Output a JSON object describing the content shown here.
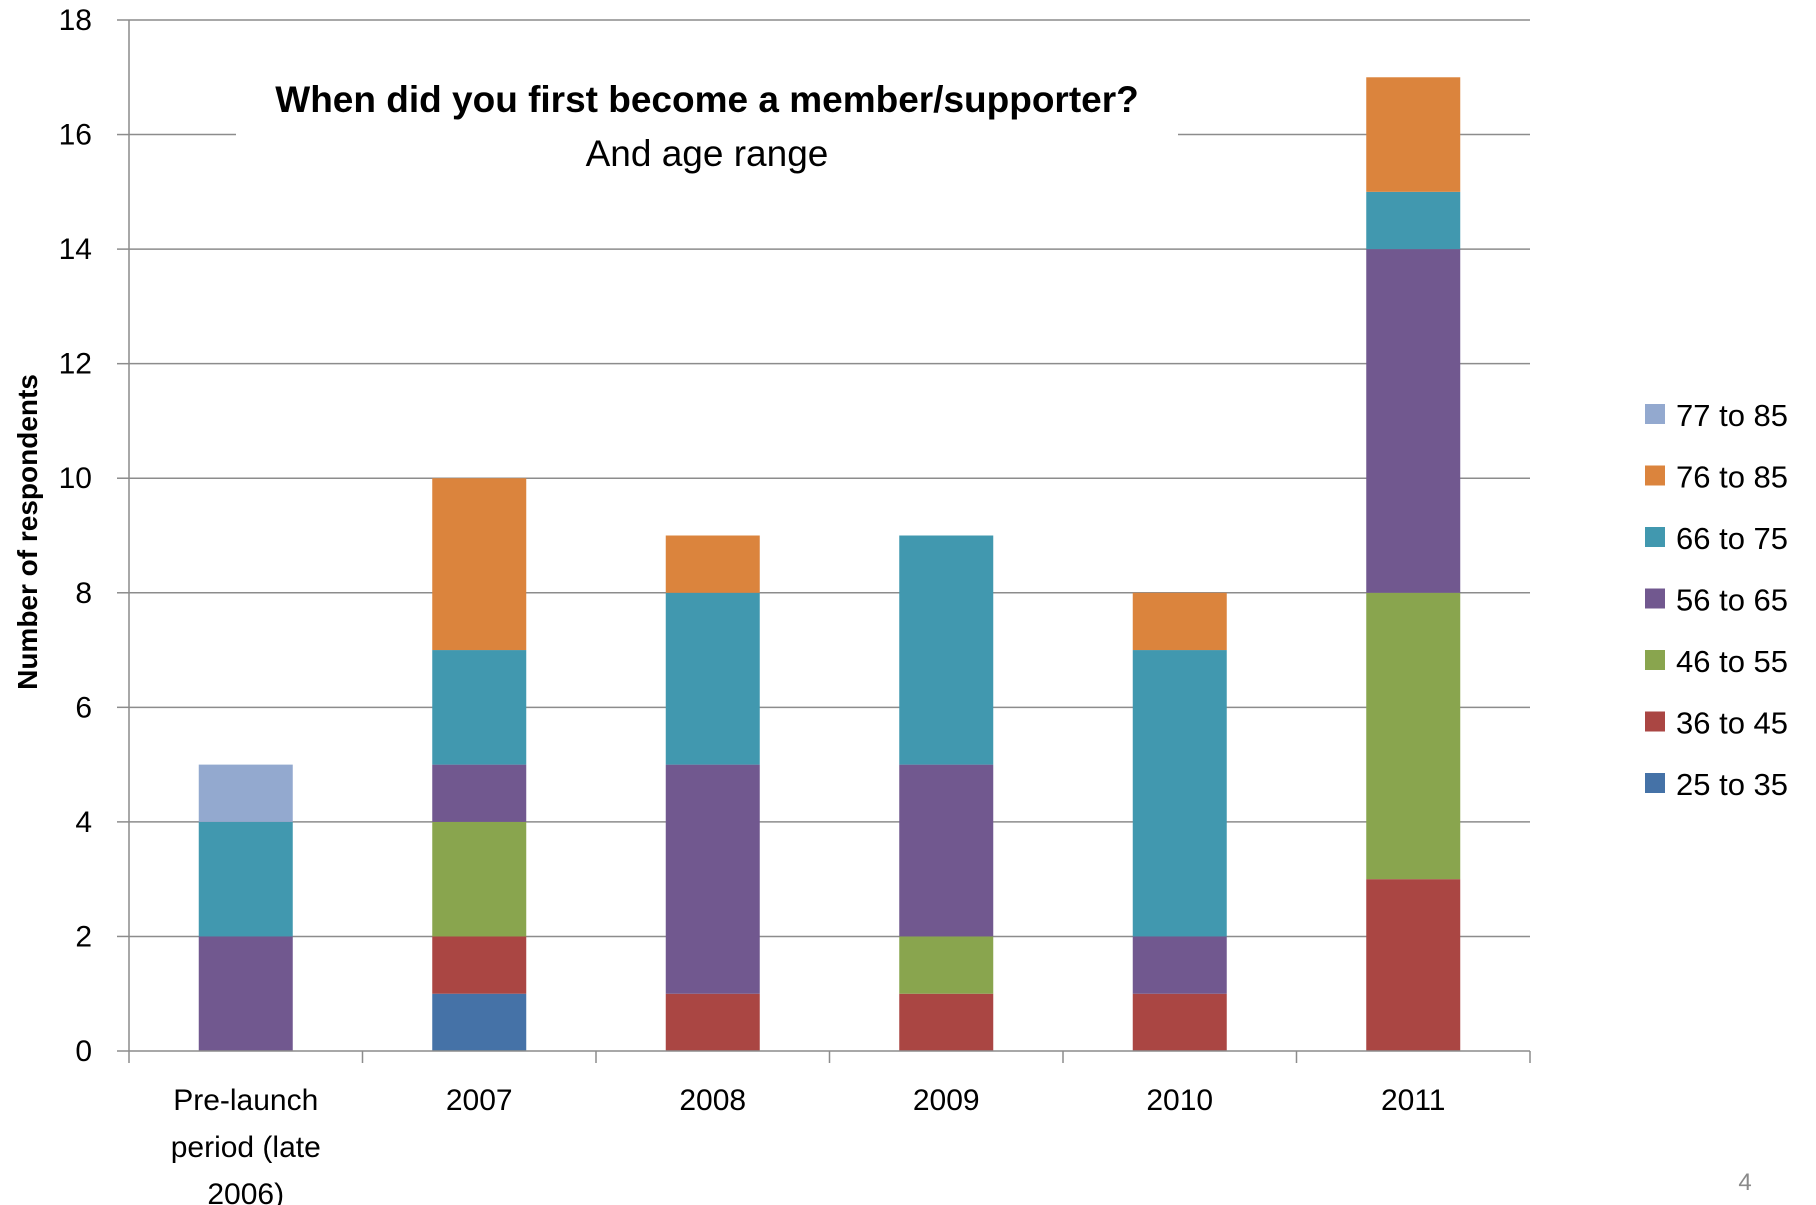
{
  "page_number": "4",
  "chart_data": {
    "type": "bar",
    "stacked": true,
    "title": "When did you first become a member/supporter?",
    "subtitle": "And age range",
    "ylabel": "Number of respondents",
    "xlabel": "",
    "ylim": [
      0,
      18
    ],
    "yticks": [
      "0",
      "2",
      "4",
      "6",
      "8",
      "10",
      "12",
      "14",
      "16",
      "18"
    ],
    "grid": true,
    "legend_position": "right",
    "categories": [
      [
        "Pre-launch",
        "period (late",
        "2006)"
      ],
      [
        "2007"
      ],
      [
        "2008"
      ],
      [
        "2009"
      ],
      [
        "2010"
      ],
      [
        "2011"
      ]
    ],
    "series": [
      {
        "name": "25 to 35",
        "color": "#4572A7",
        "values": [
          0,
          1,
          0,
          0,
          0,
          0
        ]
      },
      {
        "name": "36 to 45",
        "color": "#AA4643",
        "values": [
          0,
          1,
          1,
          1,
          1,
          3
        ]
      },
      {
        "name": "46 to 55",
        "color": "#89A54E",
        "values": [
          0,
          2,
          0,
          1,
          0,
          5
        ]
      },
      {
        "name": "56 to 65",
        "color": "#71588F",
        "values": [
          2,
          1,
          4,
          3,
          1,
          6
        ]
      },
      {
        "name": "66 to 75",
        "color": "#4198AF",
        "values": [
          2,
          2,
          3,
          4,
          5,
          1
        ]
      },
      {
        "name": "76 to 85",
        "color": "#DB843D",
        "values": [
          0,
          3,
          1,
          0,
          1,
          2
        ]
      },
      {
        "name": "77 to 85",
        "color": "#93A9CF",
        "values": [
          1,
          0,
          0,
          0,
          0,
          0
        ]
      }
    ]
  }
}
